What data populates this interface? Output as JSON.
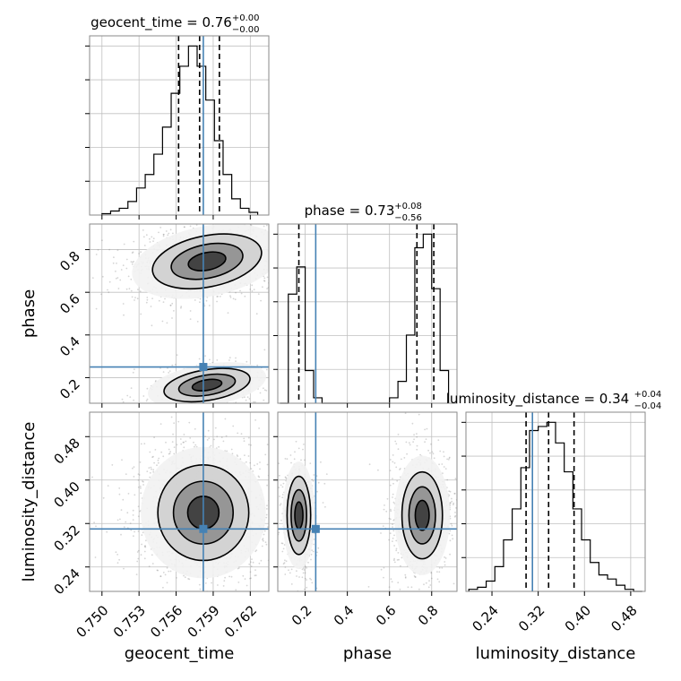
{
  "chart_data": {
    "type": "corner",
    "parameters": [
      "geocent_time",
      "phase",
      "luminosity_distance"
    ],
    "truth": {
      "geocent_time": 0.7582,
      "phase": 0.25,
      "luminosity_distance": 0.31
    },
    "colors": {
      "truth": "#4682b4",
      "hist": "#000000",
      "grid": "#c0c0c0",
      "scatter": "#888888",
      "frame": "#8a8a8a"
    },
    "grid": true,
    "diagonal": [
      {
        "param": "geocent_time",
        "title_main": "geocent_time = 0.76",
        "title_sup": "+0.00",
        "title_sub": "−0.00",
        "xlim": [
          0.749,
          0.7635
        ],
        "bin_edges": [
          0.75,
          0.7507,
          0.7514,
          0.7521,
          0.7528,
          0.7535,
          0.7542,
          0.7549,
          0.7556,
          0.7563,
          0.757,
          0.7577,
          0.7584,
          0.7591,
          0.7598,
          0.7605,
          0.7612,
          0.7619,
          0.7626
        ],
        "counts": [
          1,
          3,
          5,
          10,
          20,
          30,
          45,
          65,
          90,
          110,
          125,
          110,
          85,
          55,
          30,
          12,
          5,
          2
        ],
        "quantiles": [
          0.7562,
          0.7579,
          0.7595
        ]
      },
      {
        "param": "phase",
        "title_main": "phase = 0.73",
        "title_sup": "+0.08",
        "title_sub": "−0.56",
        "xlim": [
          0.07,
          0.92
        ],
        "bin_edges": [
          0.08,
          0.12,
          0.16,
          0.2,
          0.24,
          0.28,
          0.32,
          0.36,
          0.4,
          0.44,
          0.48,
          0.52,
          0.56,
          0.6,
          0.64,
          0.68,
          0.72,
          0.76,
          0.8,
          0.84,
          0.88
        ],
        "counts": [
          0,
          40,
          50,
          12,
          2,
          0,
          0,
          0,
          0,
          0,
          0,
          0,
          0,
          2,
          8,
          25,
          57,
          62,
          42,
          12
        ],
        "quantiles": [
          0.17,
          0.73,
          0.81
        ]
      },
      {
        "param": "luminosity_distance",
        "title_main": "luminosity_distance = 0.34",
        "title_sup": "+0.04",
        "title_sub": "−0.04",
        "xlim": [
          0.195,
          0.505
        ],
        "bin_edges": [
          0.2,
          0.215,
          0.23,
          0.245,
          0.26,
          0.275,
          0.29,
          0.305,
          0.32,
          0.335,
          0.35,
          0.365,
          0.38,
          0.395,
          0.41,
          0.425,
          0.44,
          0.455,
          0.47,
          0.485,
          0.5
        ],
        "counts": [
          1,
          2,
          5,
          12,
          25,
          40,
          60,
          78,
          80,
          82,
          72,
          58,
          40,
          25,
          14,
          8,
          6,
          3,
          1,
          0
        ],
        "quantiles": [
          0.299,
          0.338,
          0.382
        ]
      }
    ],
    "panels": [
      {
        "xparam": "geocent_time",
        "yparam": "phase",
        "xlim": [
          0.749,
          0.7635
        ],
        "ylim": [
          0.08,
          0.92
        ],
        "blobs": [
          {
            "cx": 0.7585,
            "cy": 0.745,
            "rx": 0.0028,
            "ry": 0.075,
            "rot": 0.22,
            "weight": 0.75
          },
          {
            "cx": 0.7585,
            "cy": 0.165,
            "rx": 0.0022,
            "ry": 0.045,
            "rot": 0.18,
            "weight": 0.25
          }
        ]
      },
      {
        "xparam": "geocent_time",
        "yparam": "luminosity_distance",
        "xlim": [
          0.749,
          0.7635
        ],
        "ylim": [
          0.195,
          0.525
        ],
        "blobs": [
          {
            "cx": 0.7582,
            "cy": 0.34,
            "rx": 0.0023,
            "ry": 0.055,
            "rot": 0,
            "weight": 1
          }
        ]
      },
      {
        "xparam": "phase",
        "yparam": "luminosity_distance",
        "xlim": [
          0.07,
          0.92
        ],
        "ylim": [
          0.195,
          0.525
        ],
        "blobs": [
          {
            "cx": 0.17,
            "cy": 0.335,
            "rx": 0.035,
            "ry": 0.045,
            "rot": 0,
            "weight": 0.35
          },
          {
            "cx": 0.755,
            "cy": 0.335,
            "rx": 0.06,
            "ry": 0.05,
            "rot": 0,
            "weight": 0.65
          }
        ]
      }
    ],
    "ticks": {
      "geocent_time": [
        0.75,
        0.753,
        0.756,
        0.759,
        0.762
      ],
      "phase": [
        0.2,
        0.4,
        0.6,
        0.8
      ],
      "luminosity_distance": [
        0.24,
        0.32,
        0.4,
        0.48
      ]
    },
    "tick_labels": {
      "geocent_time": [
        "0.750",
        "0.753",
        "0.756",
        "0.759",
        "0.762"
      ],
      "phase": [
        "0.2",
        "0.4",
        "0.6",
        "0.8"
      ],
      "luminosity_distance": [
        "0.24",
        "0.32",
        "0.40",
        "0.48"
      ]
    },
    "axis_labels": {
      "geocent_time": "geocent_time",
      "phase": "phase",
      "luminosity_distance": "luminosity_distance"
    }
  }
}
